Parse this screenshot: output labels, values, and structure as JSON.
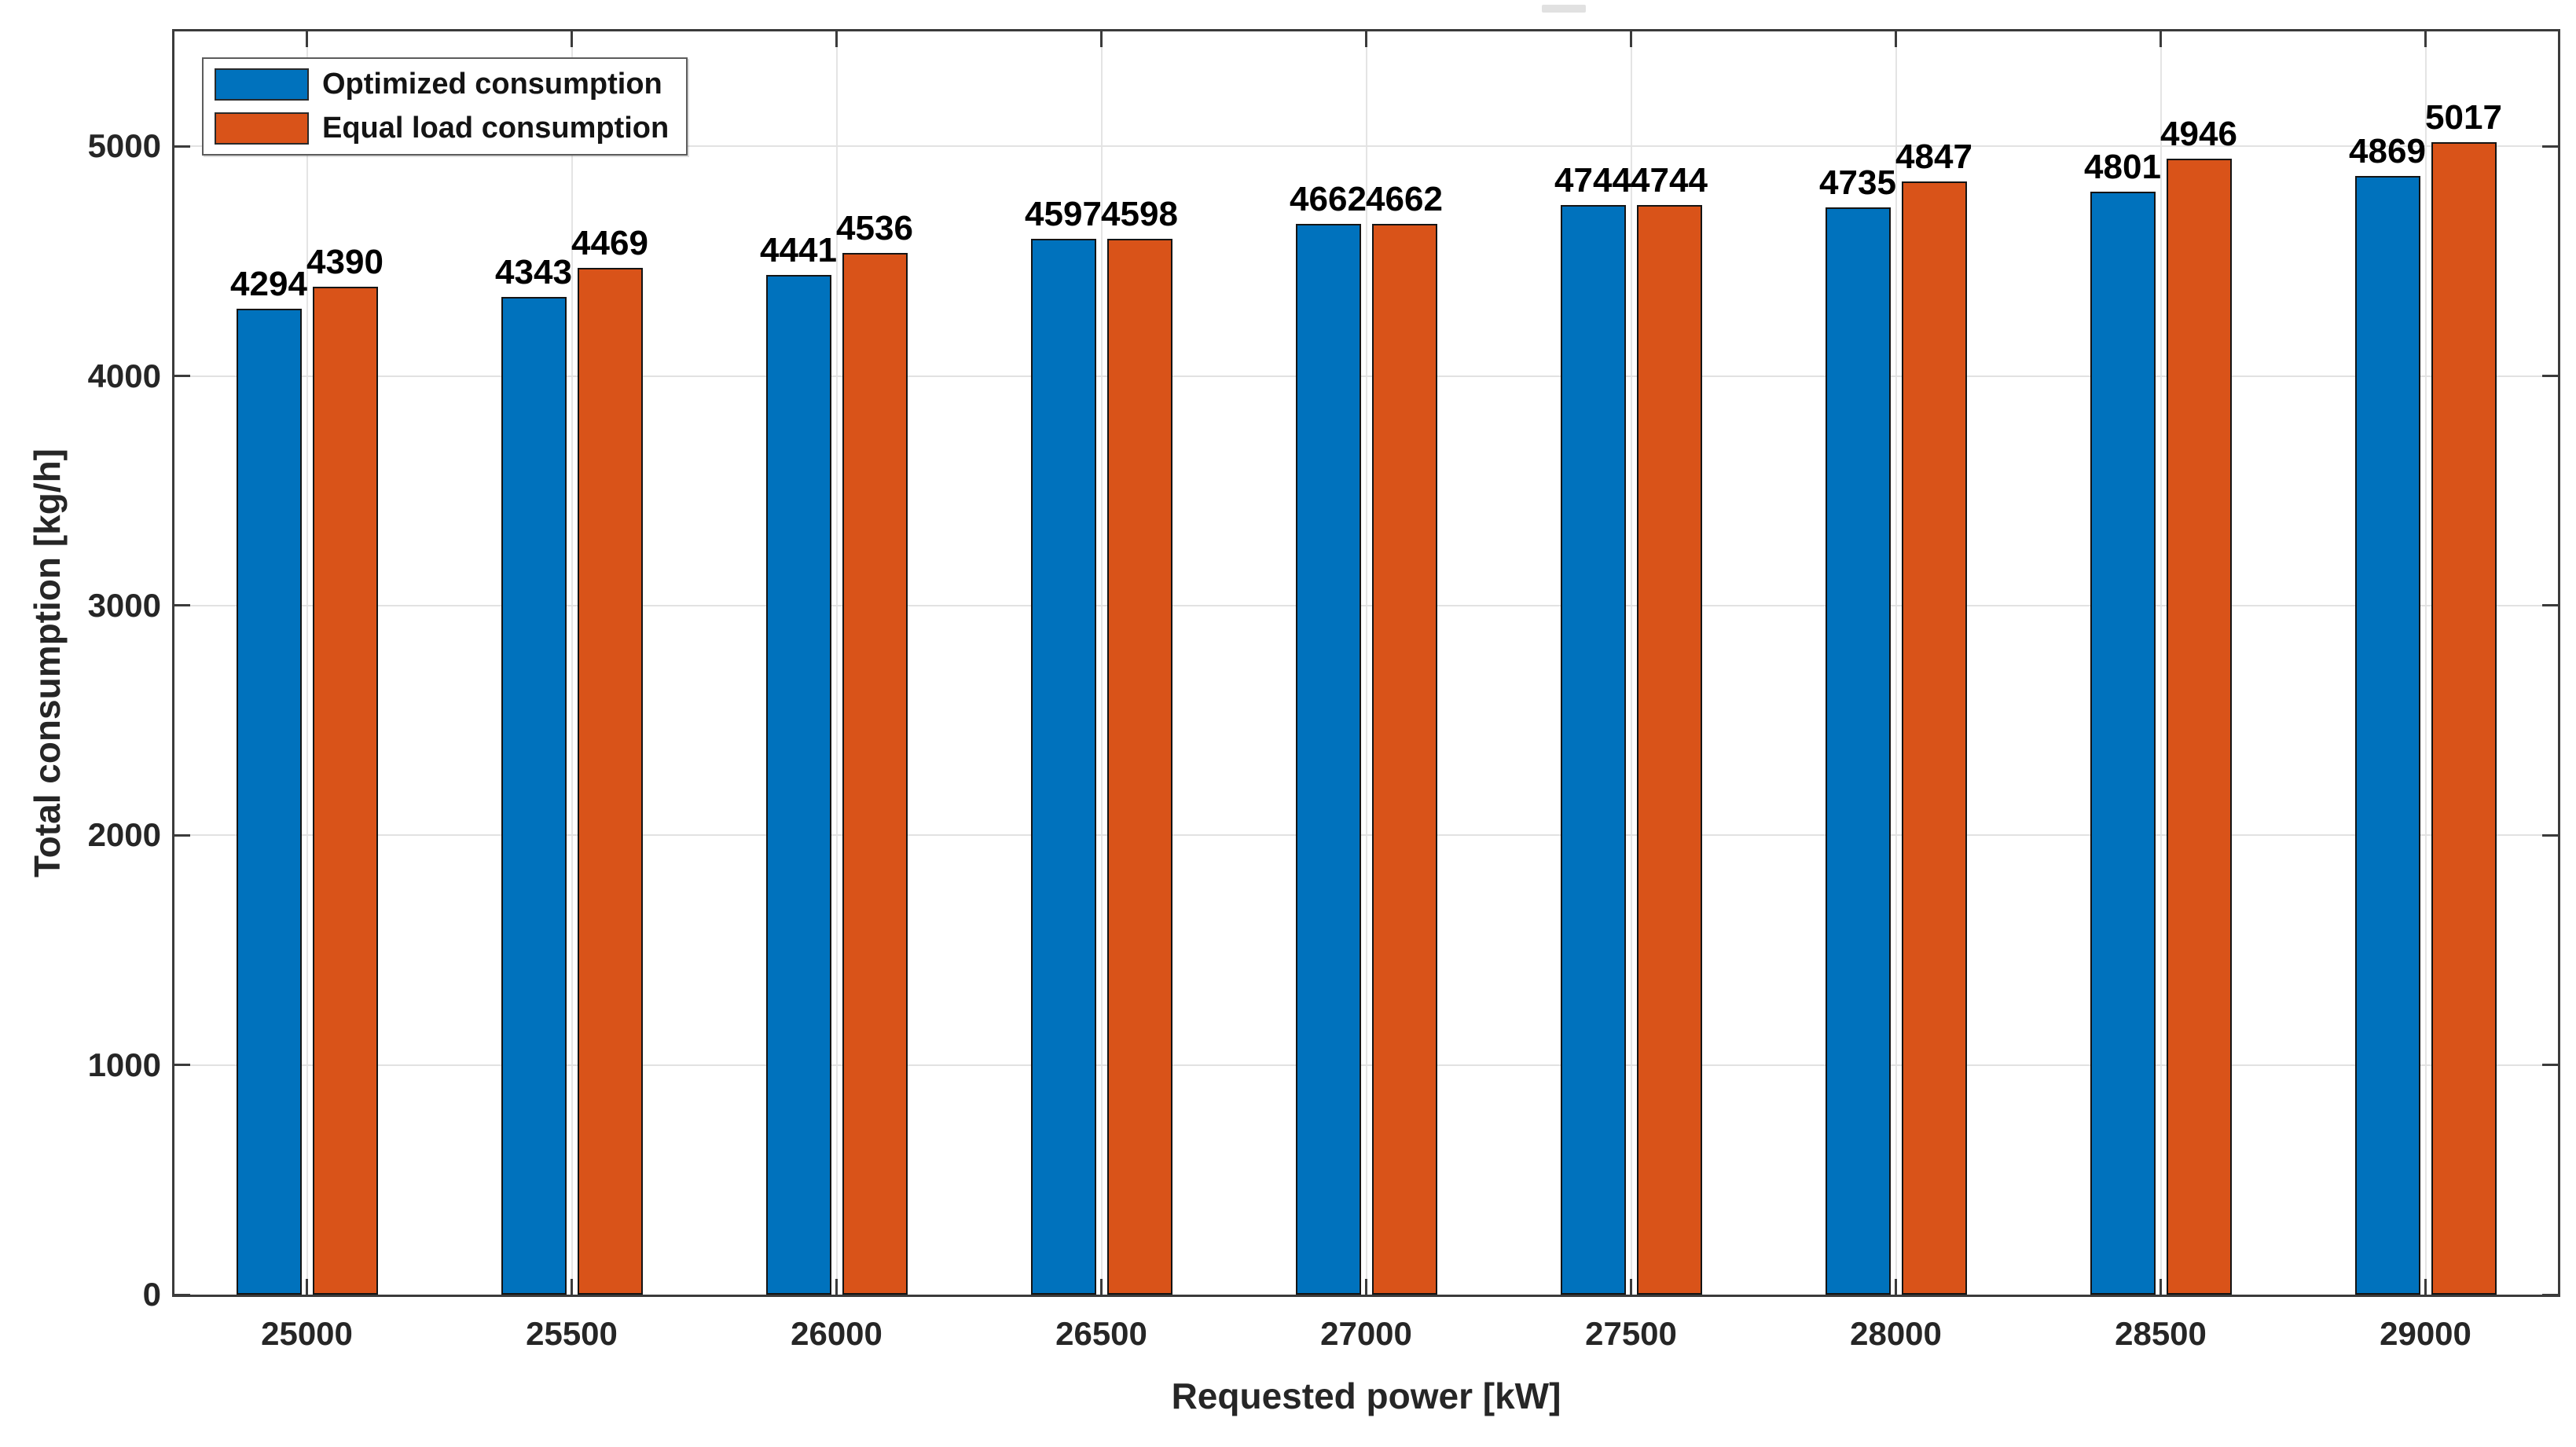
{
  "chart_data": {
    "type": "bar",
    "title": "",
    "categories": [
      "25000",
      "25500",
      "26000",
      "26500",
      "27000",
      "27500",
      "28000",
      "28500",
      "29000"
    ],
    "series": [
      {
        "name": "Optimized consumption",
        "color": "#0072BD",
        "values": [
          4294,
          4343,
          4441,
          4597,
          4662,
          4744,
          4735,
          4801,
          4869
        ]
      },
      {
        "name": "Equal load consumption",
        "color": "#D95319",
        "values": [
          4390,
          4469,
          4536,
          4598,
          4662,
          4744,
          4847,
          4946,
          5017
        ]
      }
    ],
    "xlabel": "Requested power [kW]",
    "ylabel": "Total consumption [kg/h]",
    "ylim": [
      0,
      5500
    ],
    "yticks": [
      0,
      1000,
      2000,
      3000,
      4000,
      5000
    ],
    "grid": true,
    "bar_value_labels": true,
    "legend_position": "top-left",
    "colors": {
      "axis_box": "#3b3b3b",
      "grid_line": "#e2e2e2",
      "tick_text": "#262626",
      "value_label_text": "#000000",
      "background": "#ffffff"
    }
  }
}
